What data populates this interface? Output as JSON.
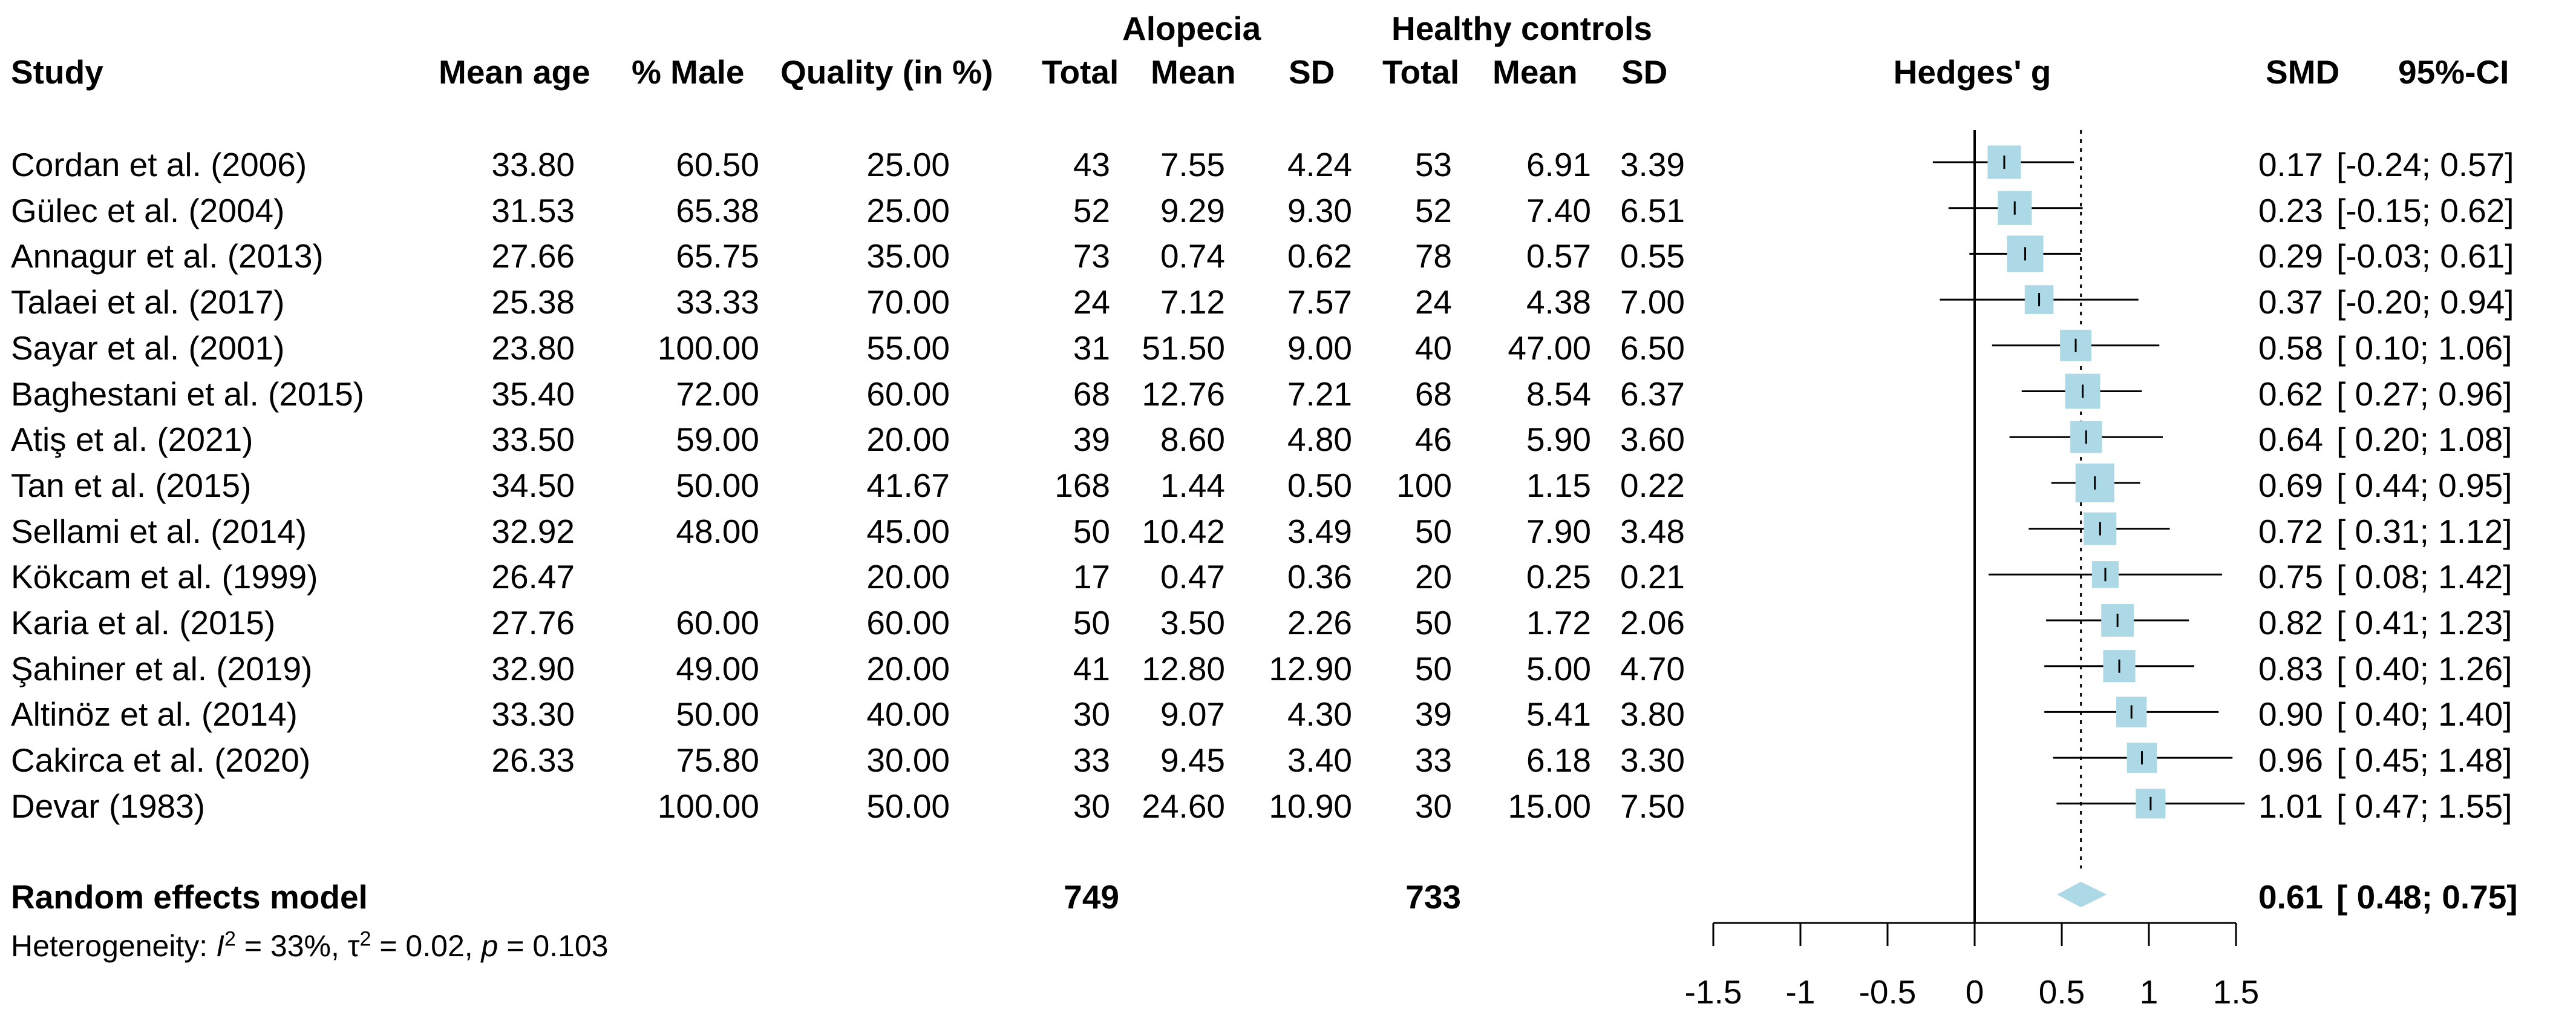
{
  "headers": {
    "group1": "Alopecia",
    "group2": "Healthy controls",
    "study": "Study",
    "mean_age": "Mean age",
    "pct_male": "% Male",
    "quality": "Quality (in %)",
    "total1": "Total",
    "mean1": "Mean",
    "sd1": "SD",
    "total2": "Total",
    "mean2": "Mean",
    "sd2": "SD",
    "plot": "Hedges' g",
    "smd": "SMD",
    "ci": "95%-CI"
  },
  "studies": [
    {
      "study": "Cordan et al. (2006)",
      "mean_age": "33.80",
      "pct_male": "60.50",
      "quality": "25.00",
      "total1": "43",
      "mean1": "7.55",
      "sd1": "4.24",
      "total2": "53",
      "mean2": "6.91",
      "sd2": "3.39",
      "smd": "0.17",
      "ci": "[-0.24; 0.57]"
    },
    {
      "study": "Gülec et al. (2004)",
      "mean_age": "31.53",
      "pct_male": "65.38",
      "quality": "25.00",
      "total1": "52",
      "mean1": "9.29",
      "sd1": "9.30",
      "total2": "52",
      "mean2": "7.40",
      "sd2": "6.51",
      "smd": "0.23",
      "ci": "[-0.15; 0.62]"
    },
    {
      "study": "Annagur et al. (2013)",
      "mean_age": "27.66",
      "pct_male": "65.75",
      "quality": "35.00",
      "total1": "73",
      "mean1": "0.74",
      "sd1": "0.62",
      "total2": "78",
      "mean2": "0.57",
      "sd2": "0.55",
      "smd": "0.29",
      "ci": "[-0.03; 0.61]"
    },
    {
      "study": "Talaei et al. (2017)",
      "mean_age": "25.38",
      "pct_male": "33.33",
      "quality": "70.00",
      "total1": "24",
      "mean1": "7.12",
      "sd1": "7.57",
      "total2": "24",
      "mean2": "4.38",
      "sd2": "7.00",
      "smd": "0.37",
      "ci": "[-0.20; 0.94]"
    },
    {
      "study": "Sayar et al. (2001)",
      "mean_age": "23.80",
      "pct_male": "100.00",
      "quality": "55.00",
      "total1": "31",
      "mean1": "51.50",
      "sd1": "9.00",
      "total2": "40",
      "mean2": "47.00",
      "sd2": "6.50",
      "smd": "0.58",
      "ci": "[ 0.10; 1.06]"
    },
    {
      "study": "Baghestani et al. (2015)",
      "mean_age": "35.40",
      "pct_male": "72.00",
      "quality": "60.00",
      "total1": "68",
      "mean1": "12.76",
      "sd1": "7.21",
      "total2": "68",
      "mean2": "8.54",
      "sd2": "6.37",
      "smd": "0.62",
      "ci": "[ 0.27; 0.96]"
    },
    {
      "study": "Atiş et al. (2021)",
      "mean_age": "33.50",
      "pct_male": "59.00",
      "quality": "20.00",
      "total1": "39",
      "mean1": "8.60",
      "sd1": "4.80",
      "total2": "46",
      "mean2": "5.90",
      "sd2": "3.60",
      "smd": "0.64",
      "ci": "[ 0.20; 1.08]"
    },
    {
      "study": "Tan et al. (2015)",
      "mean_age": "34.50",
      "pct_male": "50.00",
      "quality": "41.67",
      "total1": "168",
      "mean1": "1.44",
      "sd1": "0.50",
      "total2": "100",
      "mean2": "1.15",
      "sd2": "0.22",
      "smd": "0.69",
      "ci": "[ 0.44; 0.95]"
    },
    {
      "study": "Sellami et al. (2014)",
      "mean_age": "32.92",
      "pct_male": "48.00",
      "quality": "45.00",
      "total1": "50",
      "mean1": "10.42",
      "sd1": "3.49",
      "total2": "50",
      "mean2": "7.90",
      "sd2": "3.48",
      "smd": "0.72",
      "ci": "[ 0.31; 1.12]"
    },
    {
      "study": "Kökcam et al. (1999)",
      "mean_age": "26.47",
      "pct_male": "",
      "quality": "20.00",
      "total1": "17",
      "mean1": "0.47",
      "sd1": "0.36",
      "total2": "20",
      "mean2": "0.25",
      "sd2": "0.21",
      "smd": "0.75",
      "ci": "[ 0.08; 1.42]"
    },
    {
      "study": "Karia et al. (2015)",
      "mean_age": "27.76",
      "pct_male": "60.00",
      "quality": "60.00",
      "total1": "50",
      "mean1": "3.50",
      "sd1": "2.26",
      "total2": "50",
      "mean2": "1.72",
      "sd2": "2.06",
      "smd": "0.82",
      "ci": "[ 0.41; 1.23]"
    },
    {
      "study": "Şahiner et al. (2019)",
      "mean_age": "32.90",
      "pct_male": "49.00",
      "quality": "20.00",
      "total1": "41",
      "mean1": "12.80",
      "sd1": "12.90",
      "total2": "50",
      "mean2": "5.00",
      "sd2": "4.70",
      "smd": "0.83",
      "ci": "[ 0.40; 1.26]"
    },
    {
      "study": "Altinöz et al. (2014)",
      "mean_age": "33.30",
      "pct_male": "50.00",
      "quality": "40.00",
      "total1": "30",
      "mean1": "9.07",
      "sd1": "4.30",
      "total2": "39",
      "mean2": "5.41",
      "sd2": "3.80",
      "smd": "0.90",
      "ci": "[ 0.40; 1.40]"
    },
    {
      "study": "Cakirca et al. (2020)",
      "mean_age": "26.33",
      "pct_male": "75.80",
      "quality": "30.00",
      "total1": "33",
      "mean1": "9.45",
      "sd1": "3.40",
      "total2": "33",
      "mean2": "6.18",
      "sd2": "3.30",
      "smd": "0.96",
      "ci": "[ 0.45; 1.48]"
    },
    {
      "study": "Devar (1983)",
      "mean_age": "",
      "pct_male": "100.00",
      "quality": "50.00",
      "total1": "30",
      "mean1": "24.60",
      "sd1": "10.90",
      "total2": "30",
      "mean2": "15.00",
      "sd2": "7.50",
      "smd": "1.01",
      "ci": "[ 0.47; 1.55]"
    }
  ],
  "summary": {
    "label": "Random effects model",
    "total1": "749",
    "total2": "733",
    "smd": "0.61",
    "ci": "[ 0.48; 0.75]"
  },
  "heterogeneity": {
    "prefix": "Heterogeneity: ",
    "i_symbol": "I",
    "i_sup": "2",
    "i_value": " = 33%, ",
    "tau_symbol": "τ",
    "tau_sup": "2",
    "tau_value": " = 0.02, ",
    "p_symbol": "p",
    "p_value": " = 0.103"
  },
  "colors": {
    "box": "#add8e6",
    "diamond": "#add8e6",
    "line": "#000000"
  },
  "chart_data": {
    "type": "forest",
    "measure": "Hedges' g",
    "xlim": [
      -1.5,
      1.5
    ],
    "xticks": [
      "-1.5",
      "-1",
      "-0.5",
      "0",
      "0.5",
      "1",
      "1.5"
    ],
    "xtick_values": [
      -1.5,
      -1,
      -0.5,
      0,
      0.5,
      1,
      1.5
    ],
    "reference_line": 0,
    "pooled_line_style": "dotted",
    "pooled": {
      "estimate": 0.61,
      "lower": 0.48,
      "upper": 0.75
    },
    "estimates": [
      {
        "estimate": 0.17,
        "lower": -0.24,
        "upper": 0.57,
        "weight": 0.073
      },
      {
        "estimate": 0.23,
        "lower": -0.15,
        "upper": 0.62,
        "weight": 0.078
      },
      {
        "estimate": 0.29,
        "lower": -0.03,
        "upper": 0.61,
        "weight": 0.095
      },
      {
        "estimate": 0.37,
        "lower": -0.2,
        "upper": 0.94,
        "weight": 0.045
      },
      {
        "estimate": 0.58,
        "lower": 0.1,
        "upper": 1.06,
        "weight": 0.06
      },
      {
        "estimate": 0.62,
        "lower": 0.27,
        "upper": 0.96,
        "weight": 0.085
      },
      {
        "estimate": 0.64,
        "lower": 0.2,
        "upper": 1.08,
        "weight": 0.062
      },
      {
        "estimate": 0.69,
        "lower": 0.44,
        "upper": 0.95,
        "weight": 0.115
      },
      {
        "estimate": 0.72,
        "lower": 0.31,
        "upper": 1.12,
        "weight": 0.068
      },
      {
        "estimate": 0.75,
        "lower": 0.08,
        "upper": 1.42,
        "weight": 0.035
      },
      {
        "estimate": 0.82,
        "lower": 0.41,
        "upper": 1.23,
        "weight": 0.068
      },
      {
        "estimate": 0.83,
        "lower": 0.4,
        "upper": 1.26,
        "weight": 0.065
      },
      {
        "estimate": 0.9,
        "lower": 0.4,
        "upper": 1.4,
        "weight": 0.055
      },
      {
        "estimate": 0.96,
        "lower": 0.45,
        "upper": 1.48,
        "weight": 0.052
      },
      {
        "estimate": 1.01,
        "lower": 0.47,
        "upper": 1.55,
        "weight": 0.05
      }
    ]
  }
}
